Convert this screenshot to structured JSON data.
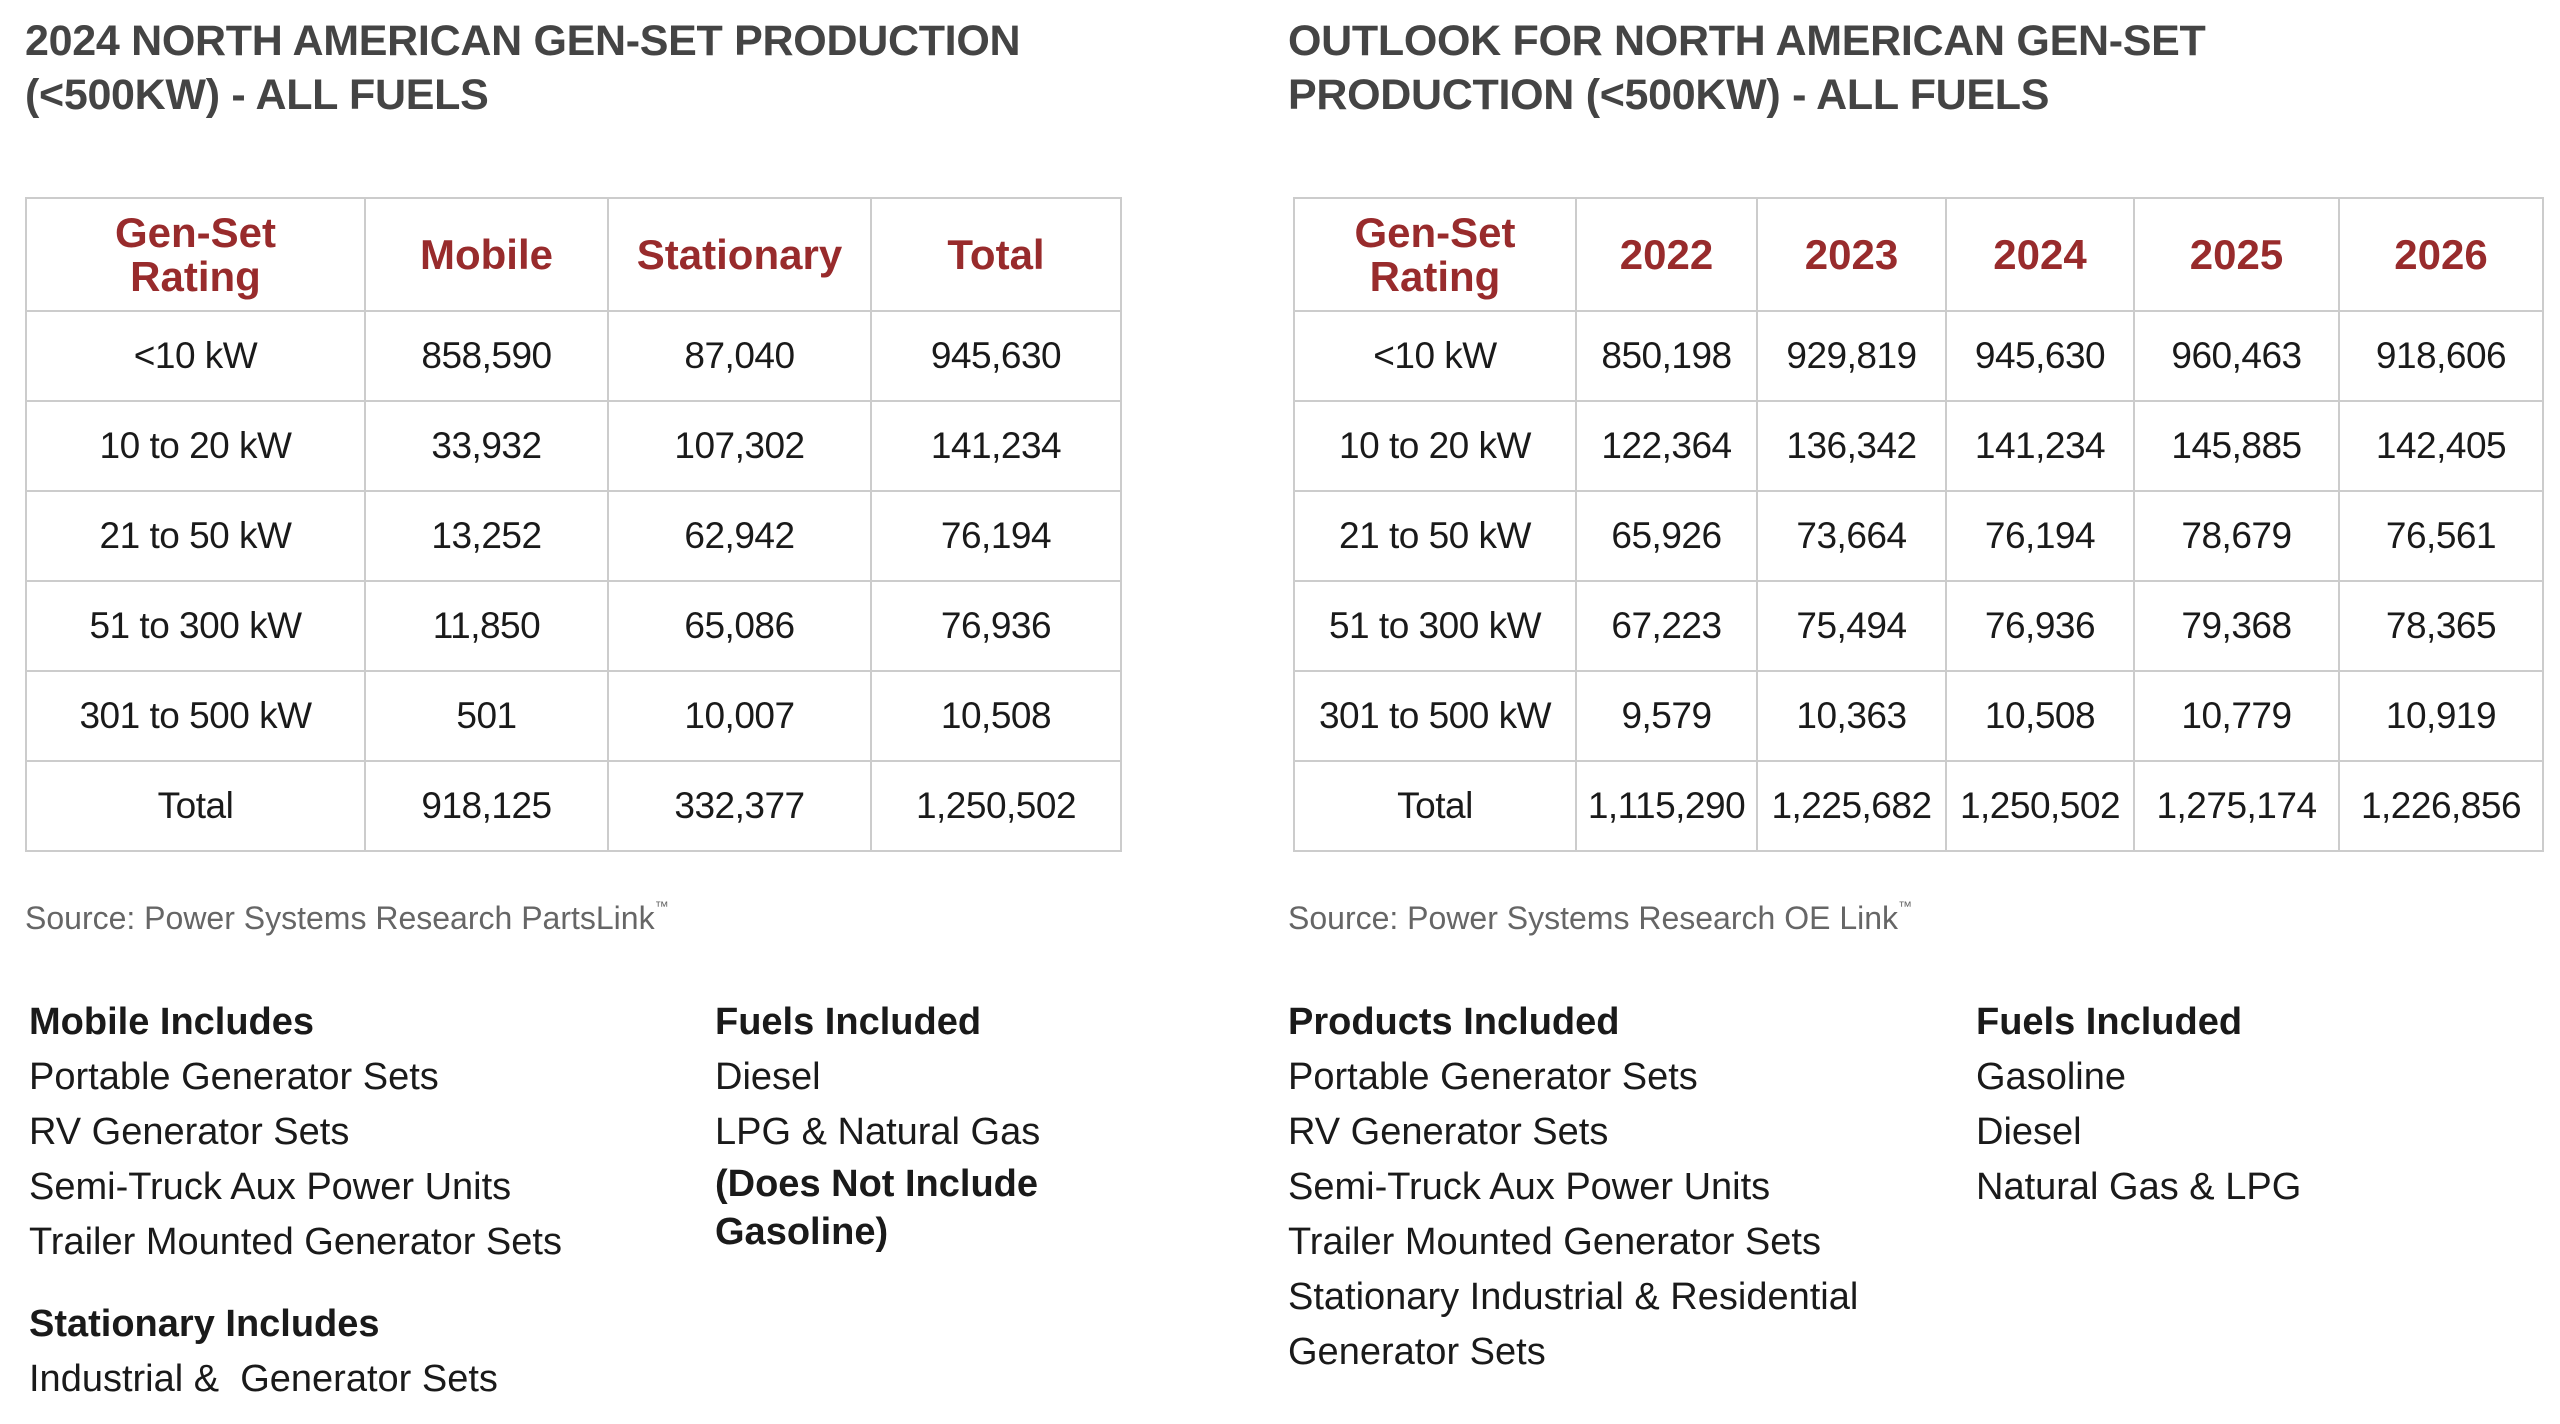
{
  "left_panel": {
    "title_line1": "2024 NORTH AMERICAN GEN-SET PRODUCTION",
    "title_line2": "(<500KW) - ALL FUELS",
    "table": {
      "headers": [
        "Gen-Set Rating",
        "Mobile",
        "Stationary",
        "Total"
      ],
      "header_rating_line1": "Gen-Set",
      "header_rating_line2": "Rating",
      "rows": [
        [
          "<10 kW",
          "858,590",
          "87,040",
          "945,630"
        ],
        [
          "10 to 20 kW",
          "33,932",
          "107,302",
          "141,234"
        ],
        [
          "21 to 50 kW",
          "13,252",
          "62,942",
          "76,194"
        ],
        [
          "51 to 300 kW",
          "11,850",
          "65,086",
          "76,936"
        ],
        [
          "301 to 500 kW",
          "501",
          "10,007",
          "10,508"
        ],
        [
          "Total",
          "918,125",
          "332,377",
          "1,250,502"
        ]
      ]
    },
    "source": "Source: Power Systems Research PartsLink",
    "source_mark": "™",
    "mobile_includes": {
      "heading": "Mobile Includes",
      "items": [
        "Portable Generator Sets",
        "RV Generator Sets",
        "Semi-Truck Aux Power Units",
        "Trailer Mounted Generator Sets"
      ]
    },
    "stationary_includes": {
      "heading": "Stationary Includes",
      "items": [
        "Industrial &  Generator Sets"
      ]
    },
    "fuels_included": {
      "heading": "Fuels Included",
      "items": [
        "Diesel",
        "LPG & Natural Gas"
      ],
      "note": "(Does Not Include Gasoline)"
    }
  },
  "right_panel": {
    "title_line1": "OUTLOOK FOR NORTH AMERICAN GEN-SET",
    "title_line2": "PRODUCTION (<500KW) - ALL FUELS",
    "table": {
      "headers": [
        "Gen-Set Rating",
        "2022",
        "2023",
        "2024",
        "2025",
        "2026"
      ],
      "header_rating_line1": "Gen-Set",
      "header_rating_line2": "Rating",
      "rows": [
        [
          "<10 kW",
          "850,198",
          "929,819",
          "945,630",
          "960,463",
          "918,606"
        ],
        [
          "10 to 20 kW",
          "122,364",
          "136,342",
          "141,234",
          "145,885",
          "142,405"
        ],
        [
          "21 to 50 kW",
          "65,926",
          "73,664",
          "76,194",
          "78,679",
          "76,561"
        ],
        [
          "51 to 300 kW",
          "67,223",
          "75,494",
          "76,936",
          "79,368",
          "78,365"
        ],
        [
          "301 to 500 kW",
          "9,579",
          "10,363",
          "10,508",
          "10,779",
          "10,919"
        ],
        [
          "Total",
          "1,115,290",
          "1,225,682",
          "1,250,502",
          "1,275,174",
          "1,226,856"
        ]
      ]
    },
    "source": "Source: Power Systems Research OE Link",
    "source_mark": "™",
    "products_included": {
      "heading": "Products Included",
      "items": [
        "Portable Generator Sets",
        "RV Generator Sets",
        "Semi-Truck Aux Power Units",
        "Trailer Mounted Generator Sets",
        "Stationary Industrial & Residential Generator Sets"
      ]
    },
    "fuels_included": {
      "heading": "Fuels Included",
      "items": [
        "Gasoline",
        "Diesel",
        "Natural Gas & LPG"
      ]
    }
  },
  "colors": {
    "header_red": "#982b2c",
    "title_gray": "#444444",
    "source_gray": "#666666",
    "border_gray": "#cccccc"
  }
}
